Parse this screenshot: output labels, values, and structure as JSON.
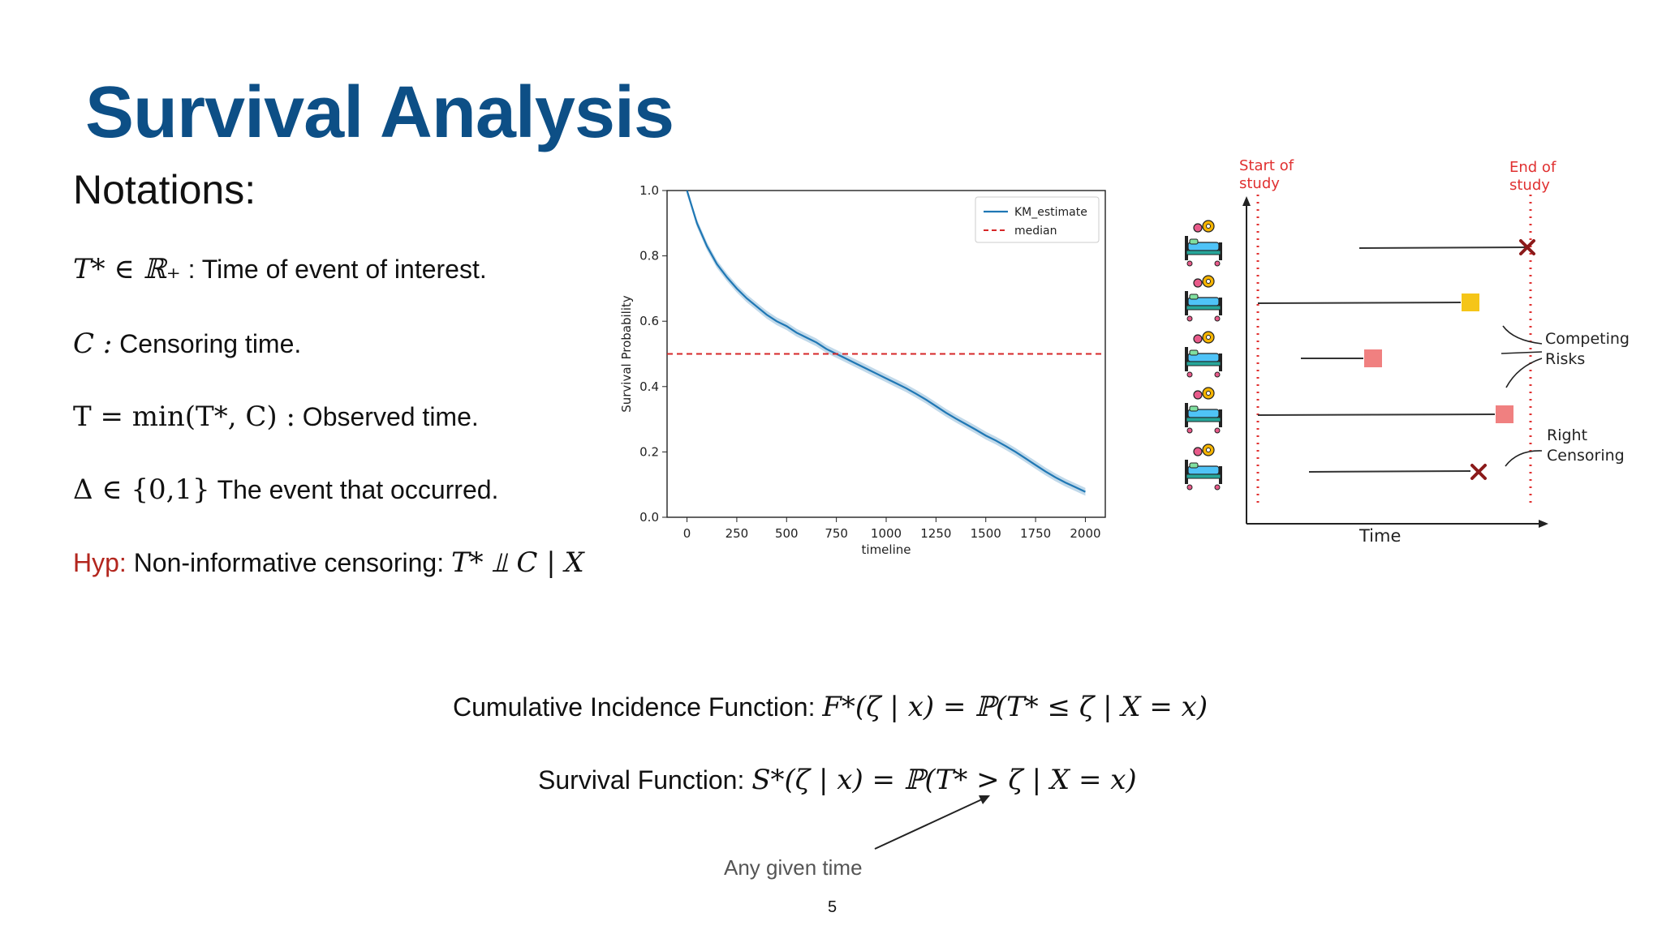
{
  "slide": {
    "title": "Survival Analysis",
    "subtitle": "Notations:",
    "page_number": "5"
  },
  "notations": {
    "event_time": {
      "math": "T* ∈ ℝ₊",
      "text": ": Time of event of interest."
    },
    "censoring": {
      "math": "C :",
      "text": "Censoring time."
    },
    "observed": {
      "math": "T = min(T*, C) :",
      "text": "Observed time."
    },
    "event": {
      "math": "Δ ∈ {0,1}",
      "text": "The event that occurred."
    },
    "hypothesis": {
      "label": "Hyp:",
      "text": "Non-informative censoring:",
      "math": "T* ⫫ C | X"
    }
  },
  "formulas": {
    "cif": {
      "label": "Cumulative Incidence Function:",
      "math": "F*(ζ | x) = ℙ(T* ≤ ζ | X = x)"
    },
    "survival": {
      "label": "Survival Function:",
      "math": "S*(ζ | x) = ℙ(T* > ζ | X = x)"
    },
    "annotation": "Any given time"
  },
  "chart_data": {
    "type": "line",
    "title": "",
    "xlabel": "timeline",
    "ylabel": "Survival Probability",
    "xlim": [
      -100,
      2100
    ],
    "ylim": [
      0,
      1.0
    ],
    "xticks": [
      0,
      250,
      500,
      750,
      1000,
      1250,
      1500,
      1750,
      2000
    ],
    "yticks": [
      0.0,
      0.2,
      0.4,
      0.6,
      0.8,
      1.0
    ],
    "legend_position": "top-right",
    "series": [
      {
        "name": "KM_estimate",
        "color": "#1f77b4",
        "x": [
          0,
          50,
          100,
          150,
          200,
          250,
          300,
          350,
          400,
          450,
          500,
          550,
          600,
          650,
          700,
          750,
          800,
          850,
          900,
          950,
          1000,
          1050,
          1100,
          1150,
          1200,
          1250,
          1300,
          1350,
          1400,
          1450,
          1500,
          1550,
          1600,
          1650,
          1700,
          1750,
          1800,
          1850,
          1900,
          1950,
          2000
        ],
        "y": [
          1.0,
          0.9,
          0.83,
          0.775,
          0.735,
          0.7,
          0.67,
          0.645,
          0.62,
          0.6,
          0.585,
          0.565,
          0.55,
          0.535,
          0.515,
          0.5,
          0.485,
          0.47,
          0.455,
          0.44,
          0.425,
          0.41,
          0.395,
          0.378,
          0.36,
          0.34,
          0.32,
          0.302,
          0.285,
          0.268,
          0.25,
          0.235,
          0.218,
          0.2,
          0.18,
          0.16,
          0.14,
          0.122,
          0.106,
          0.092,
          0.078
        ],
        "ci_halfwidth": 0.012
      },
      {
        "name": "median",
        "color": "#d62728",
        "style": "dashed",
        "y": 0.5
      }
    ]
  },
  "diagram": {
    "start_label": [
      "Start of",
      "study"
    ],
    "end_label": [
      "End of",
      "study"
    ],
    "axis_label": "Time",
    "competing_label": [
      "Competing",
      "Risks"
    ],
    "censoring_label": [
      "Right",
      "Censoring"
    ],
    "colors": {
      "boundary": "#e03030",
      "event_x": "#8b1a1a",
      "square_yellow": "#f5c518",
      "square_red": "#f08080"
    }
  }
}
